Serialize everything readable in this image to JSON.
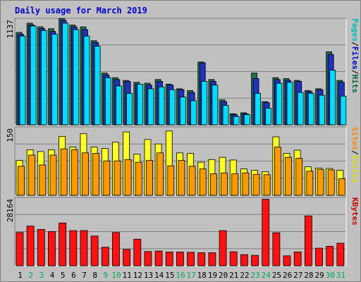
{
  "chart_data": {
    "type": "bar",
    "title": "Daily usage for March 2019",
    "categories": [
      "1",
      "2",
      "3",
      "4",
      "5",
      "6",
      "7",
      "8",
      "9",
      "10",
      "11",
      "12",
      "13",
      "14",
      "15",
      "16",
      "17",
      "18",
      "19",
      "20",
      "21",
      "22",
      "23",
      "24",
      "25",
      "26",
      "27",
      "28",
      "29",
      "30",
      "31"
    ],
    "weekend_days": [
      "2",
      "3",
      "9",
      "10",
      "16",
      "17",
      "23",
      "24",
      "30",
      "31"
    ],
    "panels": [
      {
        "id": "pages_files_hits",
        "ymax_label": "1137",
        "ymax": 1137,
        "legend": [
          {
            "label": "Pages",
            "color": "#00bbbb"
          },
          {
            "label": "/",
            "color": "#000000"
          },
          {
            "label": "Files",
            "color": "#0000cc"
          },
          {
            "label": "/",
            "color": "#000000"
          },
          {
            "label": "Hits",
            "color": "#006633"
          }
        ],
        "series": [
          {
            "name": "Hits",
            "color": "#1f6f4f",
            "values": [
              1000,
              1100,
              1060,
              1040,
              1150,
              1080,
              1060,
              910,
              560,
              510,
              480,
              460,
              450,
              490,
              440,
              390,
              370,
              680,
              490,
              270,
              120,
              130,
              560,
              250,
              510,
              500,
              480,
              370,
              390,
              790,
              480
            ]
          },
          {
            "name": "Files",
            "color": "#2030c0",
            "values": [
              980,
              1080,
              1040,
              1010,
              1130,
              1060,
              1030,
              890,
              540,
              490,
              470,
              440,
              430,
              470,
              430,
              380,
              350,
              670,
              470,
              250,
              110,
              120,
              500,
              240,
              490,
              480,
              470,
              360,
              380,
              760,
              460
            ]
          },
          {
            "name": "Pages",
            "color": "#00ddff",
            "values": [
              960,
              1070,
              1020,
              980,
              1100,
              1030,
              960,
              850,
              510,
              420,
              340,
              440,
              390,
              410,
              380,
              300,
              260,
              470,
              430,
              210,
              90,
              110,
              340,
              180,
              450,
              460,
              350,
              340,
              320,
              590,
              310
            ]
          }
        ]
      },
      {
        "id": "visits_sites",
        "ymax_label": "150",
        "ymax": 150,
        "legend": [
          {
            "label": "Sites",
            "color": "#ff8800"
          },
          {
            "label": "/",
            "color": "#000000"
          },
          {
            "label": "Visits",
            "color": "#dddd00"
          }
        ],
        "series": [
          {
            "name": "Visits",
            "color": "#ffff22",
            "values": [
              78,
              102,
              98,
              102,
              132,
              108,
              138,
              108,
              105,
              119,
              142,
              92,
              125,
              115,
              144,
              95,
              94,
              74,
              80,
              85,
              79,
              59,
              56,
              53,
              131,
              94,
              101,
              64,
              61,
              60,
              56
            ]
          },
          {
            "name": "Sites",
            "color": "#ff9900",
            "values": [
              65,
              90,
              68,
              90,
              104,
              102,
              95,
              94,
              77,
              77,
              80,
              74,
              78,
              95,
              66,
              78,
              65,
              59,
              48,
              50,
              48,
              50,
              47,
              46,
              108,
              85,
              83,
              54,
              58,
              57,
              37
            ]
          }
        ]
      },
      {
        "id": "kbytes",
        "ymax_label": "28164",
        "ymax": 28164,
        "legend": [
          {
            "label": "KBytes",
            "color": "#cc0000"
          }
        ],
        "series": [
          {
            "name": "KBytes",
            "color": "#ff1111",
            "values": [
              14000,
              16700,
              15300,
              14400,
              18000,
              14800,
              14800,
              12500,
              7800,
              14000,
              6900,
              11200,
              6000,
              6200,
              5800,
              5800,
              5700,
              5500,
              5500,
              14800,
              5900,
              4700,
              4400,
              28000,
              13900,
              4200,
              5800,
              21000,
              7400,
              8200,
              9500
            ]
          }
        ]
      }
    ]
  }
}
